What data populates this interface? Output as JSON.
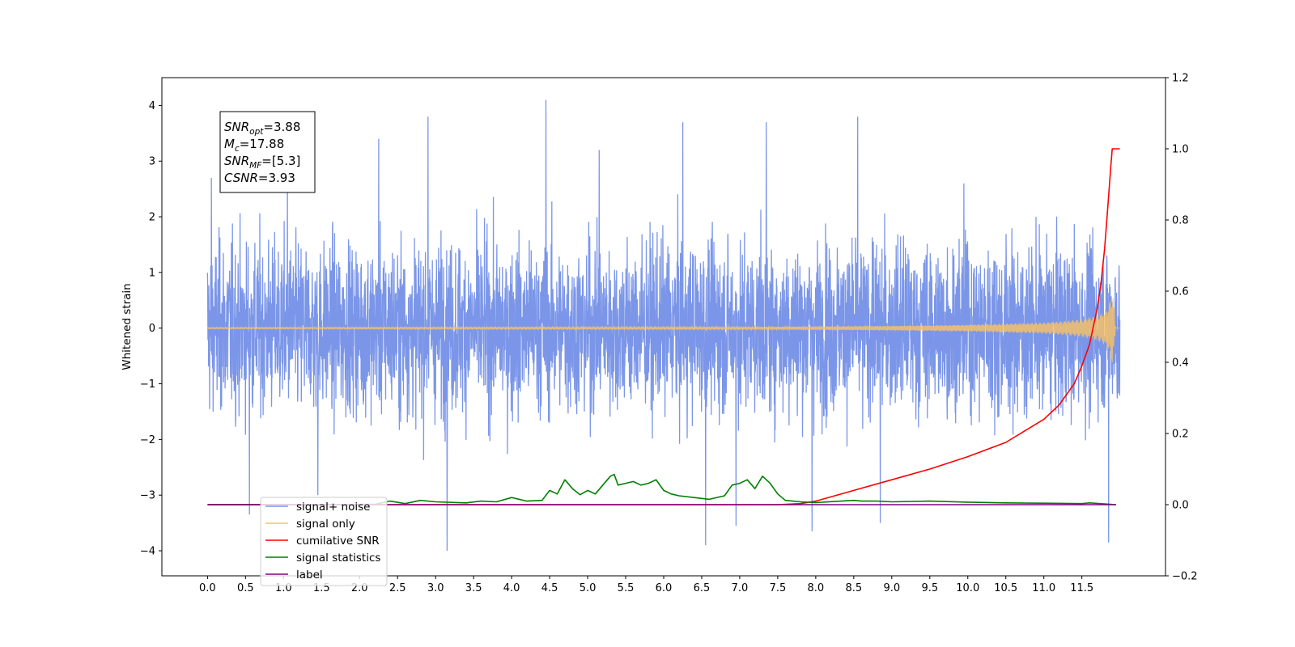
{
  "chart_data": {
    "type": "line",
    "title": "",
    "xlabel": "",
    "ylabel": "Whitened strain",
    "xlim": [
      -0.6,
      12.6
    ],
    "ylim": [
      -4.45,
      4.5
    ],
    "y2lim": [
      -0.2,
      1.2
    ],
    "x_ticks": [
      "0.0",
      "0.5",
      "1.0",
      "1.5",
      "2.0",
      "2.5",
      "3.0",
      "3.5",
      "4.0",
      "4.5",
      "5.0",
      "5.5",
      "6.0",
      "6.5",
      "7.0",
      "7.5",
      "8.0",
      "8.5",
      "9.0",
      "9.5",
      "10.0",
      "10.5",
      "11.0",
      "11.5"
    ],
    "y_ticks": [
      "−4",
      "−3",
      "−2",
      "−1",
      "0",
      "1",
      "2",
      "3",
      "4"
    ],
    "y2_ticks": [
      "−0.2",
      "0.0",
      "0.2",
      "0.4",
      "0.6",
      "0.8",
      "1.0",
      "1.2"
    ],
    "grid": false,
    "legend_position": "lower-left",
    "annotation": [
      {
        "main": "SNR",
        "sub": "opt",
        "rest": "=3.88"
      },
      {
        "main": "M",
        "sub": "c",
        "rest": "=17.88"
      },
      {
        "main": "SNR",
        "sub": "MF",
        "rest": "=[5.3]"
      },
      {
        "main": "CSNR",
        "sub": "",
        "rest": "=3.93"
      }
    ],
    "series": [
      {
        "name": "signal+ noise",
        "axis": "left",
        "color": "#7b96e8",
        "note": "whitened noise, roughly zero-mean with excursions between about -4.0 and 4.1",
        "peaks": [
          [
            0.05,
            2.7
          ],
          [
            0.55,
            -3.35
          ],
          [
            1.05,
            3.0
          ],
          [
            1.45,
            -3.0
          ],
          [
            2.25,
            3.4
          ],
          [
            2.9,
            3.8
          ],
          [
            3.15,
            -4.0
          ],
          [
            4.45,
            4.1
          ],
          [
            5.15,
            3.2
          ],
          [
            6.25,
            3.7
          ],
          [
            6.55,
            -3.9
          ],
          [
            6.95,
            -3.55
          ],
          [
            7.35,
            3.7
          ],
          [
            7.95,
            -3.65
          ],
          [
            8.55,
            3.8
          ],
          [
            8.85,
            -3.5
          ],
          [
            9.95,
            2.6
          ],
          [
            11.85,
            -3.85
          ]
        ],
        "envelope_upper": 2.0,
        "envelope_lower": -2.0
      },
      {
        "name": "signal only",
        "axis": "left",
        "color": "#f5c16b",
        "x": [
          0.0,
          7.0,
          9.0,
          10.0,
          10.5,
          11.0,
          11.3,
          11.5,
          11.7,
          11.8,
          11.85,
          11.9,
          11.92,
          11.94
        ],
        "amplitude": [
          0.01,
          0.02,
          0.04,
          0.06,
          0.08,
          0.1,
          0.13,
          0.16,
          0.22,
          0.3,
          0.4,
          0.65,
          0.5,
          0.05
        ]
      },
      {
        "name": "cumilative SNR",
        "axis": "right",
        "color": "#ff0000",
        "x": [
          0.0,
          7.5,
          7.8,
          8.0,
          8.5,
          9.0,
          9.5,
          10.0,
          10.5,
          11.0,
          11.2,
          11.4,
          11.5,
          11.6,
          11.7,
          11.75,
          11.8,
          11.85,
          11.88,
          11.9,
          11.92,
          11.95,
          12.0
        ],
        "values": [
          0.0,
          0.0,
          0.003,
          0.01,
          0.04,
          0.07,
          0.1,
          0.135,
          0.175,
          0.24,
          0.28,
          0.34,
          0.39,
          0.45,
          0.55,
          0.62,
          0.72,
          0.86,
          0.95,
          1.0,
          1.0,
          1.0,
          1.0
        ]
      },
      {
        "name": "signal statistics",
        "axis": "right",
        "color": "#008000",
        "x": [
          0.0,
          1.5,
          2.2,
          2.4,
          2.6,
          2.8,
          3.0,
          3.4,
          3.6,
          3.8,
          4.0,
          4.2,
          4.4,
          4.5,
          4.6,
          4.7,
          4.8,
          4.9,
          5.0,
          5.1,
          5.2,
          5.3,
          5.35,
          5.4,
          5.5,
          5.6,
          5.7,
          5.8,
          5.9,
          6.0,
          6.1,
          6.2,
          6.4,
          6.6,
          6.8,
          6.9,
          7.0,
          7.1,
          7.2,
          7.3,
          7.4,
          7.5,
          7.6,
          7.8,
          8.0,
          8.5,
          8.6,
          8.8,
          9.0,
          9.5,
          10.0,
          10.5,
          11.0,
          11.5,
          11.6,
          11.8,
          11.95
        ],
        "values": [
          0.0,
          0.0,
          0.001,
          0.01,
          0.003,
          0.012,
          0.008,
          0.005,
          0.01,
          0.008,
          0.02,
          0.01,
          0.012,
          0.04,
          0.03,
          0.07,
          0.045,
          0.028,
          0.04,
          0.03,
          0.055,
          0.08,
          0.085,
          0.055,
          0.06,
          0.065,
          0.055,
          0.06,
          0.07,
          0.04,
          0.03,
          0.025,
          0.02,
          0.015,
          0.025,
          0.055,
          0.06,
          0.07,
          0.045,
          0.08,
          0.06,
          0.03,
          0.012,
          0.008,
          0.006,
          0.012,
          0.01,
          0.01,
          0.008,
          0.01,
          0.007,
          0.005,
          0.004,
          0.003,
          0.005,
          0.002,
          0.0
        ]
      },
      {
        "name": "label",
        "axis": "right",
        "color": "#800080",
        "x": [
          0.0,
          11.95
        ],
        "values": [
          0.0,
          0.0
        ]
      }
    ]
  }
}
